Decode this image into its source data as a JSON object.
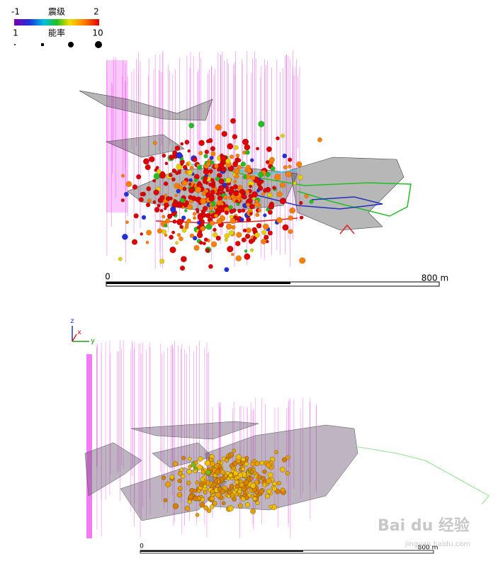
{
  "top_view": {
    "legend": {
      "magnitude": {
        "title": "震级",
        "min": "-1",
        "max": "2"
      },
      "energy": {
        "title": "能率",
        "min": "1",
        "max": "10"
      }
    },
    "scale_bar": {
      "start": "0",
      "end": "800 m"
    }
  },
  "bottom_view": {
    "axes": {
      "z": "z",
      "x": "x",
      "y": "y"
    },
    "scale_bar": {
      "start": "0",
      "end": "800 m"
    }
  },
  "watermark": {
    "brand": "Bai du 经验",
    "url": "jingyan.baidu.com"
  }
}
